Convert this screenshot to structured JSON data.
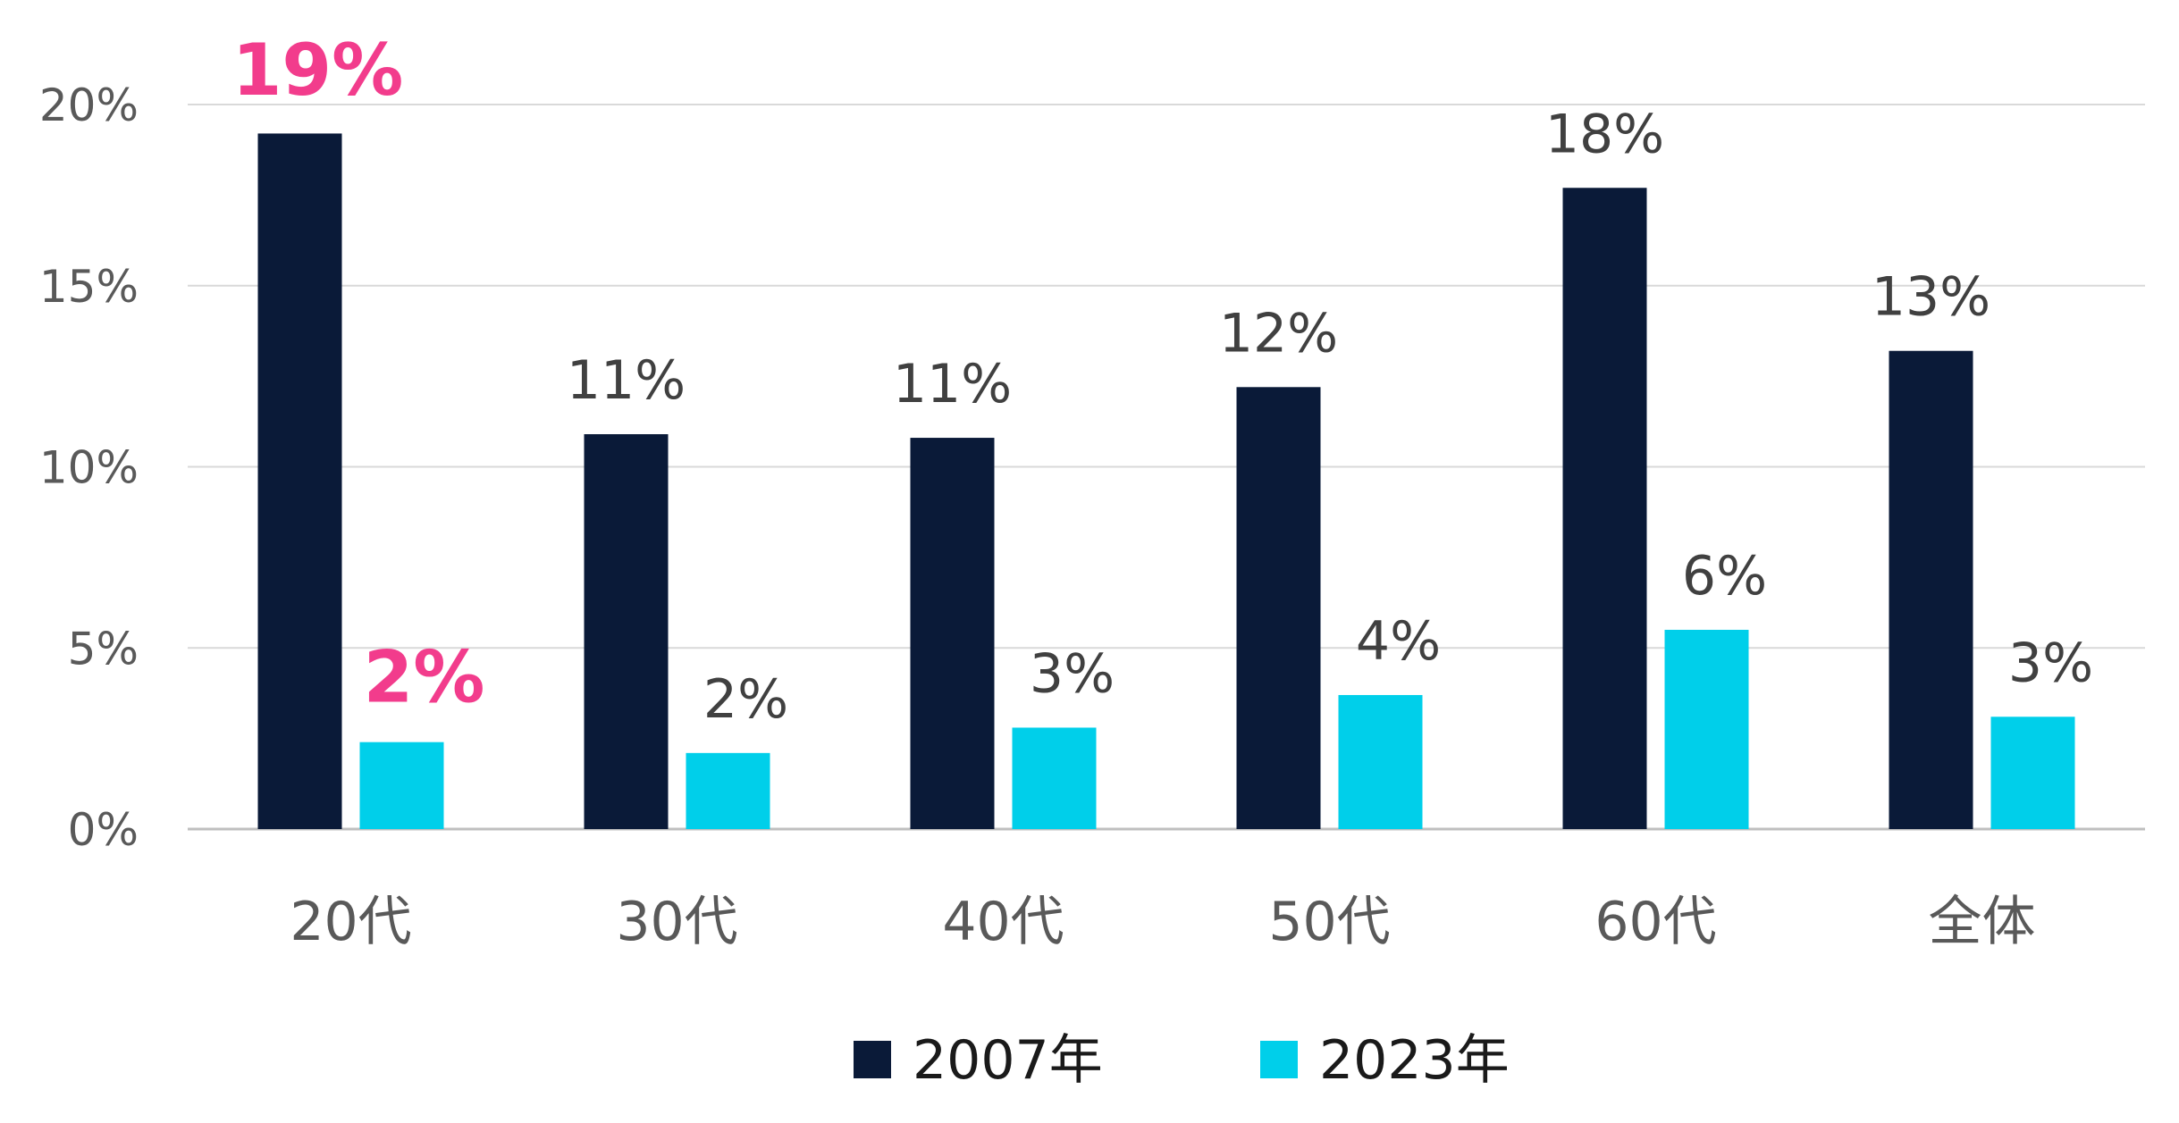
{
  "chart_data": {
    "type": "bar",
    "categories": [
      "20代",
      "30代",
      "40代",
      "50代",
      "60代",
      "全体"
    ],
    "series": [
      {
        "name": "2007年",
        "color": "#0a1a38",
        "values": [
          19.2,
          10.9,
          10.8,
          12.2,
          17.7,
          13.2
        ],
        "labels": [
          "19%",
          "11%",
          "11%",
          "12%",
          "18%",
          "13%"
        ]
      },
      {
        "name": "2023年",
        "color": "#00cfea",
        "values": [
          2.4,
          2.1,
          2.8,
          3.7,
          5.5,
          3.1
        ],
        "labels": [
          "2%",
          "2%",
          "3%",
          "4%",
          "6%",
          "3%"
        ]
      }
    ],
    "highlight": {
      "category_index": 0,
      "color": "#f23c8c"
    },
    "yticks": [
      "0%",
      "5%",
      "10%",
      "15%",
      "20%"
    ],
    "ylim": [
      0,
      20
    ],
    "grid": true,
    "legend": "bottom"
  }
}
